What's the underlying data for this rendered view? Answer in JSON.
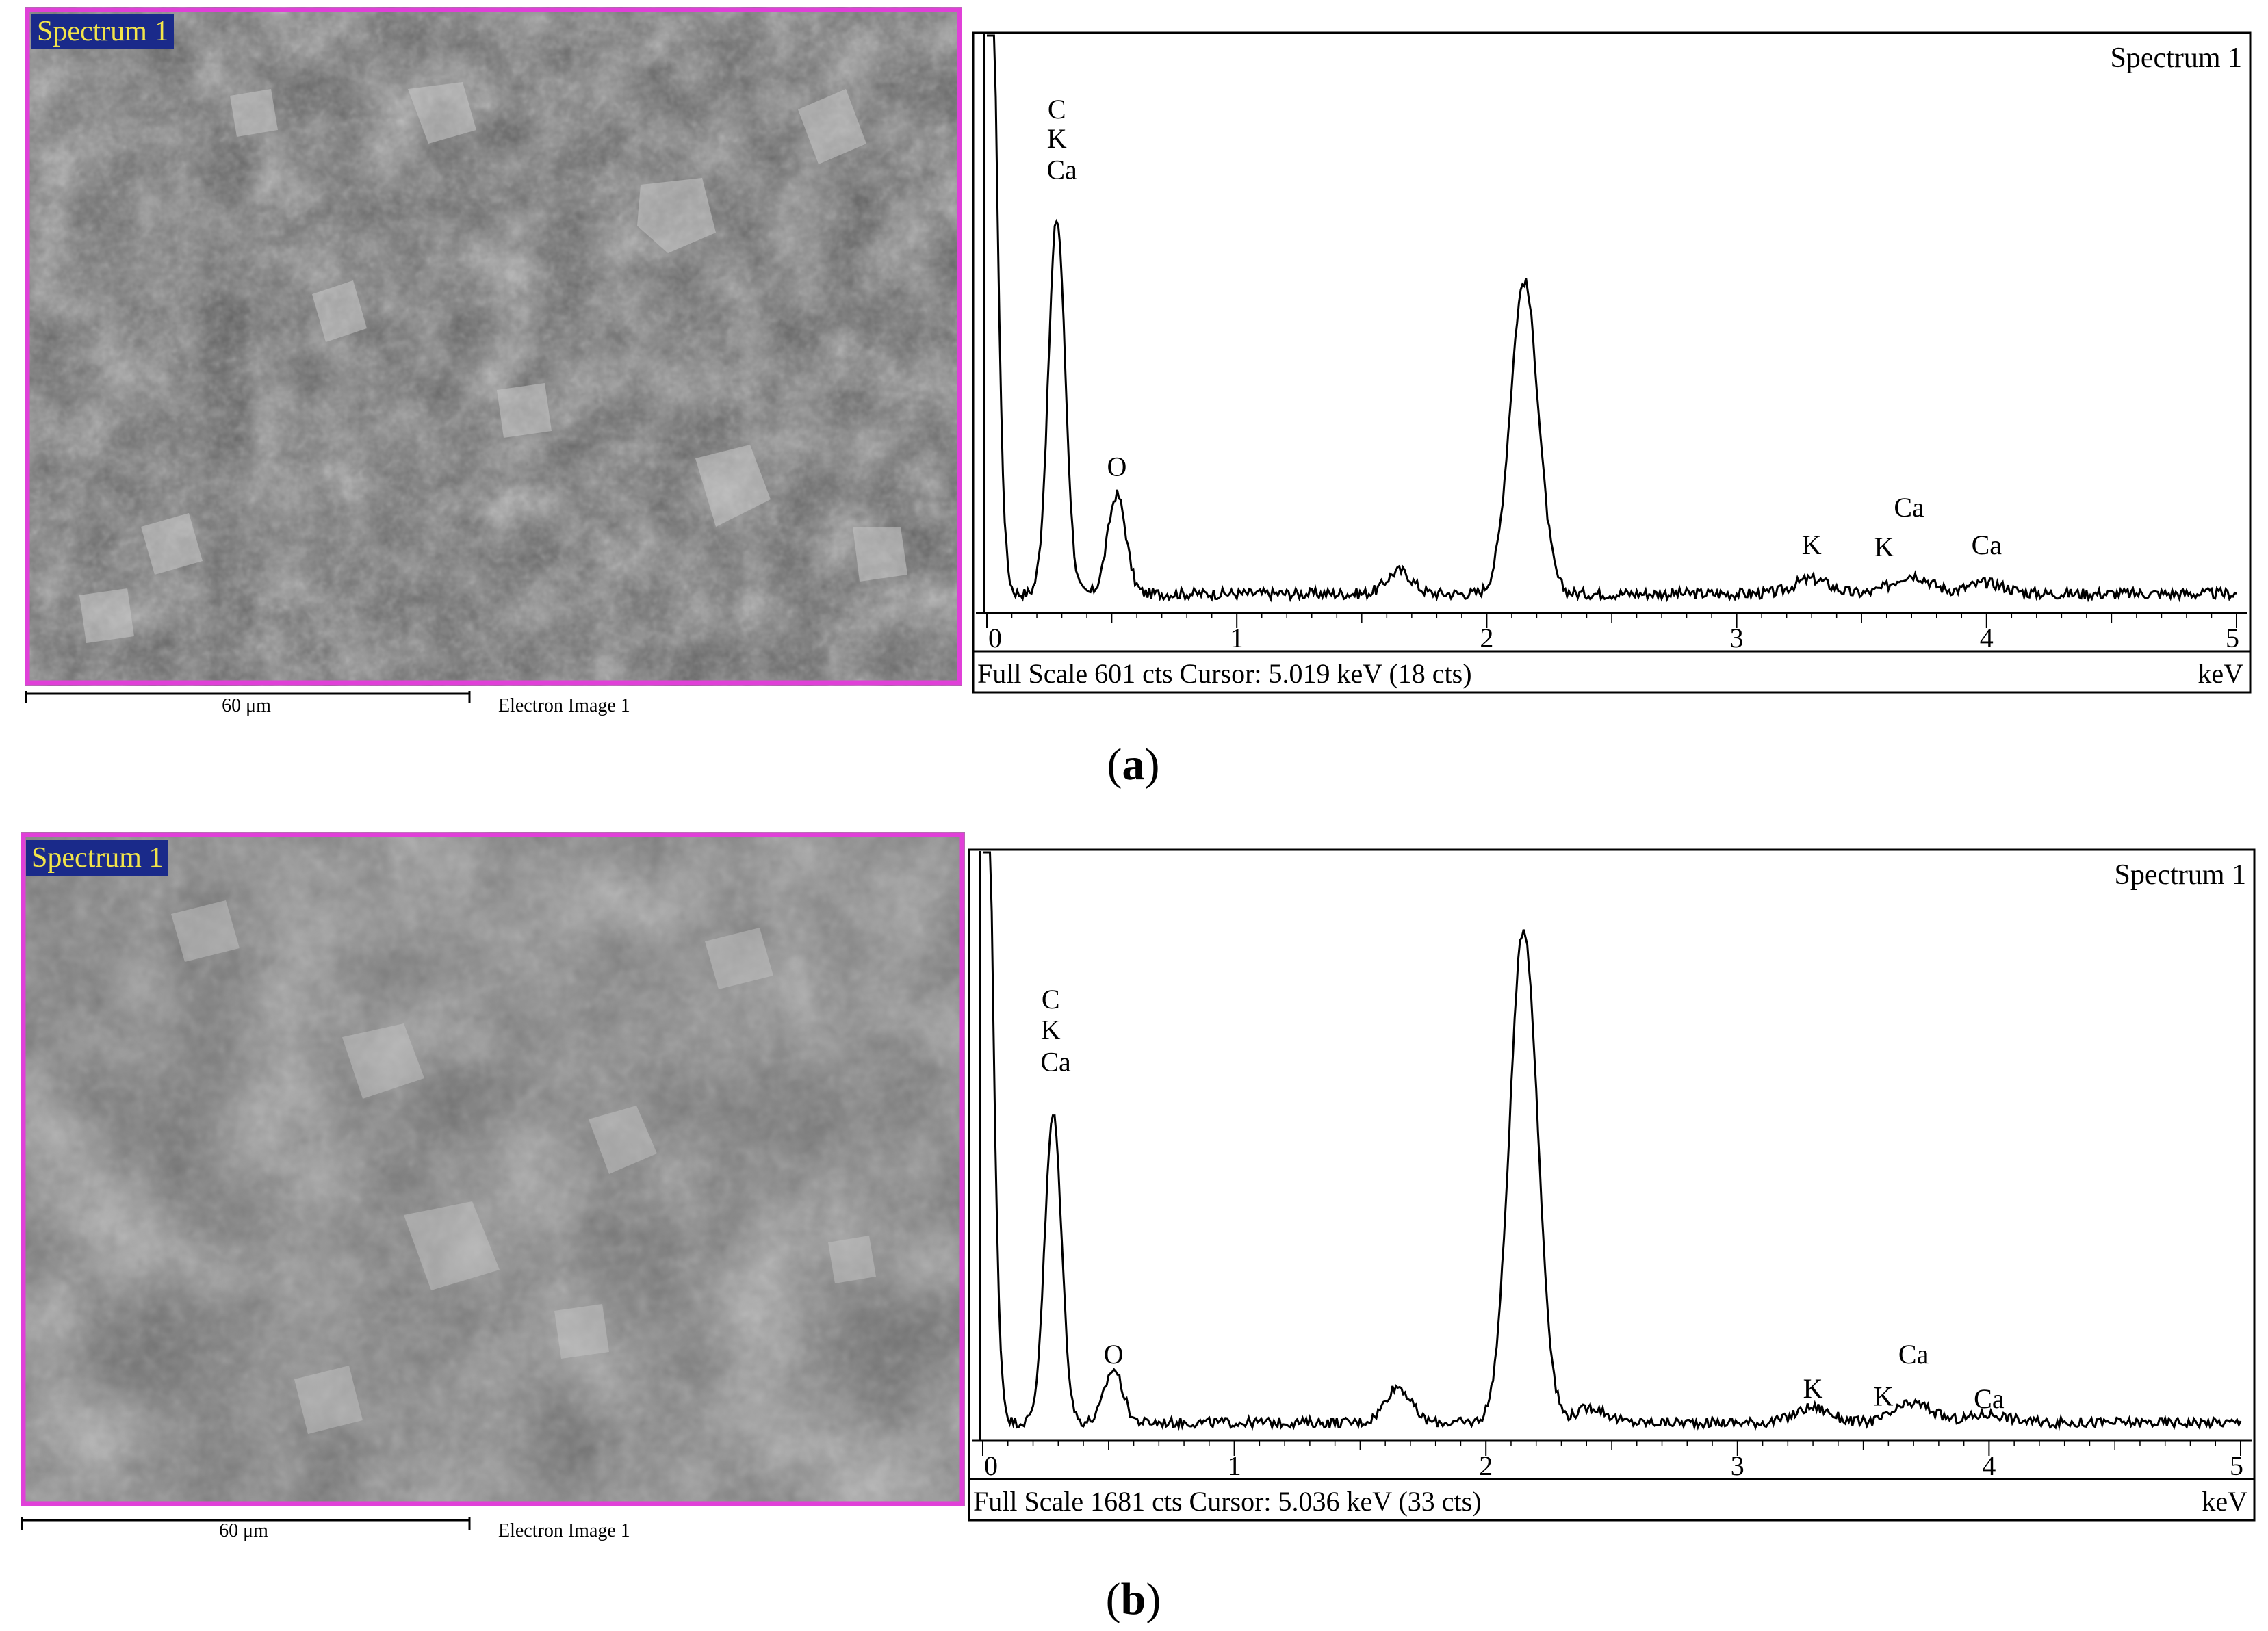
{
  "panels": [
    {
      "id": "a",
      "label_open": "(",
      "label_letter": "a",
      "label_close": ")",
      "image_tag": "Spectrum 1",
      "scale_text": "60 μm",
      "image_caption": "Electron Image 1",
      "frame_color": "#e040d8",
      "tag_bg": "#1a2a8a",
      "tag_color": "#f2e44a"
    },
    {
      "id": "b",
      "label_open": "(",
      "label_letter": "b",
      "label_close": ")",
      "image_tag": "Spectrum 1",
      "scale_text": "60 μm",
      "image_caption": "Electron Image 1",
      "frame_color": "#e040d8",
      "tag_bg": "#1a2a8a",
      "tag_color": "#f2e44a"
    }
  ],
  "chart_data": [
    {
      "type": "line",
      "title": "Spectrum 1",
      "xlabel": "keV",
      "xlim": [
        0,
        5
      ],
      "ylim": [
        0,
        601
      ],
      "x_ticks": [
        0,
        1,
        2,
        3,
        4,
        5
      ],
      "footer": "Full Scale 601 cts  Cursor: 5.019 keV (18 cts)",
      "peaks": [
        {
          "x": 0.28,
          "y": 360
        },
        {
          "x": 0.52,
          "y": 95
        },
        {
          "x": 1.65,
          "y": 22
        },
        {
          "x": 2.15,
          "y": 300
        },
        {
          "x": 3.3,
          "y": 14
        },
        {
          "x": 3.7,
          "y": 18
        },
        {
          "x": 4.0,
          "y": 10
        }
      ],
      "baseline": 12,
      "annotations": [
        {
          "text": "C",
          "x": 0.28,
          "y": 468
        },
        {
          "text": "K",
          "x": 0.28,
          "y": 440
        },
        {
          "text": "Ca",
          "x": 0.3,
          "y": 410
        },
        {
          "text": "O",
          "x": 0.52,
          "y": 125
        },
        {
          "text": "K",
          "x": 3.3,
          "y": 50
        },
        {
          "text": "Ca",
          "x": 3.69,
          "y": 86
        },
        {
          "text": "K",
          "x": 3.59,
          "y": 48
        },
        {
          "text": "Ca",
          "x": 4.0,
          "y": 50
        }
      ]
    },
    {
      "type": "line",
      "title": "Spectrum 1",
      "xlabel": "keV",
      "xlim": [
        0,
        5
      ],
      "ylim": [
        0,
        1681
      ],
      "x_ticks": [
        0,
        1,
        2,
        3,
        4,
        5
      ],
      "footer": "Full Scale 1681 cts  Cursor: 5.036 keV (33 cts)",
      "peaks": [
        {
          "x": 0.28,
          "y": 810
        },
        {
          "x": 0.52,
          "y": 140
        },
        {
          "x": 1.65,
          "y": 95
        },
        {
          "x": 2.15,
          "y": 1300
        },
        {
          "x": 2.42,
          "y": 40
        },
        {
          "x": 3.3,
          "y": 40
        },
        {
          "x": 3.7,
          "y": 50
        },
        {
          "x": 4.0,
          "y": 22
        }
      ],
      "baseline": 30,
      "annotations": [
        {
          "text": "C",
          "x": 0.27,
          "y": 1120
        },
        {
          "text": "K",
          "x": 0.27,
          "y": 1040
        },
        {
          "text": "Ca",
          "x": 0.29,
          "y": 955
        },
        {
          "text": "O",
          "x": 0.52,
          "y": 185
        },
        {
          "text": "K",
          "x": 3.3,
          "y": 95
        },
        {
          "text": "Ca",
          "x": 3.7,
          "y": 185
        },
        {
          "text": "K",
          "x": 3.58,
          "y": 75
        },
        {
          "text": "Ca",
          "x": 4.0,
          "y": 68
        }
      ]
    }
  ]
}
